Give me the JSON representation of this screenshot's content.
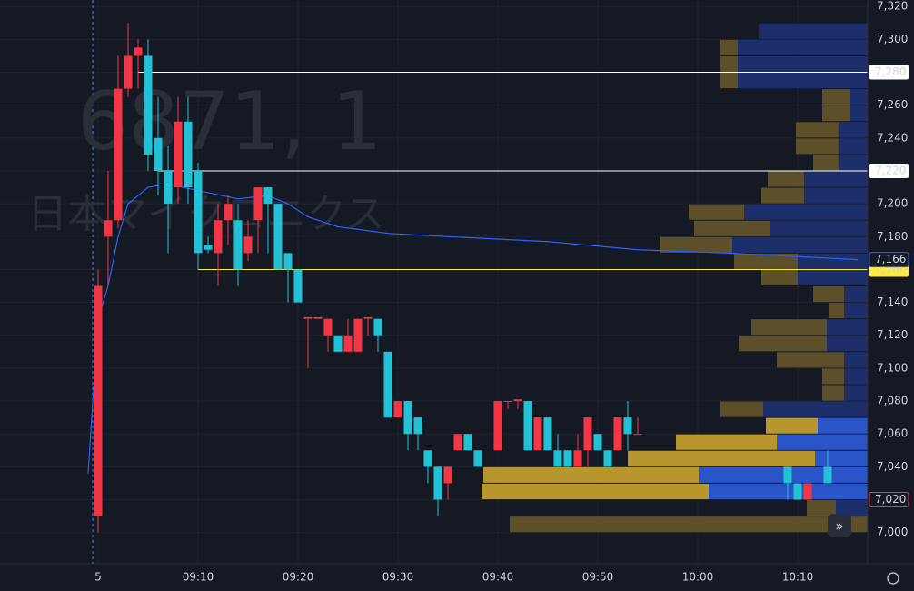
{
  "chart_data": {
    "type": "candlestick",
    "watermark": "6871, 1",
    "watermark_subtitle": "日本マイクロニクス",
    "ylim": [
      6981,
      7324
    ],
    "yticks": [
      {
        "value": 7000,
        "label": "7,000"
      },
      {
        "value": 7020,
        "label": "7,020"
      },
      {
        "value": 7040,
        "label": "7,040"
      },
      {
        "value": 7060,
        "label": "7,060"
      },
      {
        "value": 7080,
        "label": "7,080"
      },
      {
        "value": 7100,
        "label": "7,100"
      },
      {
        "value": 7120,
        "label": "7,120"
      },
      {
        "value": 7140,
        "label": "7,140"
      },
      {
        "value": 7160,
        "label": "7,160"
      },
      {
        "value": 7180,
        "label": "7,180"
      },
      {
        "value": 7200,
        "label": "7,200"
      },
      {
        "value": 7220,
        "label": "7,220"
      },
      {
        "value": 7240,
        "label": "7,240"
      },
      {
        "value": 7260,
        "label": "7,260"
      },
      {
        "value": 7280,
        "label": "7,280"
      },
      {
        "value": 7300,
        "label": "7,300"
      },
      {
        "value": 7320,
        "label": "7,320"
      }
    ],
    "xticks": [
      {
        "value": "09:00",
        "label": "5"
      },
      {
        "value": "09:10",
        "label": "09:10"
      },
      {
        "value": "09:20",
        "label": "09:20"
      },
      {
        "value": "09:30",
        "label": "09:30"
      },
      {
        "value": "09:40",
        "label": "09:40"
      },
      {
        "value": "09:50",
        "label": "09:50"
      },
      {
        "value": "10:00",
        "label": "10:00"
      },
      {
        "value": "10:10",
        "label": "10:10"
      }
    ],
    "grid": true,
    "up_color": "#f23645",
    "down_color": "#22c1d6",
    "x": [
      "09:00",
      "09:01",
      "09:02",
      "09:03",
      "09:04",
      "09:05",
      "09:06",
      "09:07",
      "09:08",
      "09:09",
      "09:10",
      "09:11",
      "09:12",
      "09:13",
      "09:14",
      "09:15",
      "09:16",
      "09:17",
      "09:18",
      "09:19",
      "09:20",
      "09:21",
      "09:22",
      "09:23",
      "09:24",
      "09:25",
      "09:26",
      "09:27",
      "09:28",
      "09:29",
      "09:30",
      "09:31",
      "09:32",
      "09:33",
      "09:34",
      "09:35",
      "09:36",
      "09:37",
      "09:38",
      "09:40",
      "09:41",
      "09:42",
      "09:43",
      "09:44",
      "09:45",
      "09:46",
      "09:47",
      "09:48",
      "09:49",
      "09:50",
      "09:51",
      "09:52",
      "09:53",
      "09:54",
      "10:09",
      "10:10",
      "10:11",
      "10:13"
    ],
    "open": [
      7010,
      7180,
      7190,
      7270,
      7290,
      7290,
      7240,
      7220,
      7210,
      7250,
      7220,
      7175,
      7170,
      7190,
      7190,
      7170,
      7190,
      7210,
      7200,
      7170,
      7160,
      7130,
      7130,
      7120,
      7120,
      7110,
      7110,
      7130,
      7130,
      7110,
      7070,
      7080,
      7070,
      7050,
      7040,
      7030,
      7050,
      7060,
      7050,
      7050,
      7080,
      7080,
      7080,
      7050,
      7070,
      7050,
      7050,
      7040,
      7050,
      7060,
      7050,
      7050,
      7070,
      7060,
      7040,
      7030,
      7020,
      7040
    ],
    "high": [
      7160,
      7220,
      7290,
      7310,
      7300,
      7300,
      7265,
      7235,
      7265,
      7265,
      7225,
      7180,
      7200,
      7205,
      7200,
      7190,
      7210,
      7210,
      7200,
      7170,
      7160,
      7130,
      7130,
      7130,
      7120,
      7130,
      7130,
      7130,
      7130,
      7110,
      7080,
      7080,
      7070,
      7050,
      7040,
      7040,
      7060,
      7060,
      7050,
      7080,
      7080,
      7080,
      7080,
      7070,
      7070,
      7060,
      7050,
      7060,
      7070,
      7060,
      7050,
      7070,
      7080,
      7070,
      7040,
      7030,
      7030,
      7050
    ],
    "low": [
      7000,
      7150,
      7185,
      7265,
      7270,
      7220,
      7205,
      7170,
      7200,
      7200,
      7160,
      7170,
      7150,
      7175,
      7150,
      7165,
      7170,
      7170,
      7160,
      7140,
      7140,
      7100,
      7130,
      7110,
      7110,
      7110,
      7110,
      7120,
      7110,
      7070,
      7070,
      7050,
      7050,
      7030,
      7010,
      7020,
      7050,
      7050,
      7040,
      7050,
      7075,
      7075,
      7050,
      7050,
      7050,
      7040,
      7040,
      7040,
      7040,
      7050,
      7040,
      7050,
      7050,
      7060,
      7020,
      7020,
      7020,
      7030
    ],
    "close": [
      7150,
      7190,
      7270,
      7290,
      7295,
      7230,
      7220,
      7200,
      7250,
      7210,
      7170,
      7172,
      7190,
      7200,
      7160,
      7180,
      7210,
      7200,
      7160,
      7160,
      7140,
      7131,
      7131,
      7130,
      7110,
      7120,
      7130,
      7131,
      7120,
      7070,
      7080,
      7060,
      7060,
      7040,
      7020,
      7040,
      7060,
      7050,
      7040,
      7080,
      7080,
      7081,
      7050,
      7070,
      7050,
      7040,
      7040,
      7050,
      7070,
      7050,
      7040,
      7070,
      7060,
      7060,
      7030,
      7020,
      7030,
      7030
    ],
    "vwap": {
      "color": "#2962ff",
      "x": [
        "08:59",
        "09:00",
        "09:01",
        "09:02",
        "09:03",
        "09:05",
        "09:07",
        "09:10",
        "09:14",
        "09:17",
        "09:19",
        "09:21",
        "09:24",
        "09:29",
        "09:35",
        "09:45",
        "09:54",
        "10:03",
        "10:16"
      ],
      "values": [
        7036,
        7130,
        7150,
        7180,
        7200,
        7210,
        7212,
        7208,
        7203,
        7205,
        7200,
        7192,
        7186,
        7182,
        7180,
        7177,
        7172,
        7170,
        7166
      ]
    },
    "levels": [
      {
        "value": 7280,
        "label": "7,280",
        "color": "#ffffff",
        "from": "09:04"
      },
      {
        "value": 7220,
        "label": "7,220",
        "color": "#ffffff",
        "from": "09:06"
      },
      {
        "value": 7160,
        "label": "7,160",
        "color": "#ffeb3b",
        "from": "09:10"
      }
    ],
    "price_labels": [
      {
        "value": 7166,
        "label": "7,166",
        "color": "#2962ff"
      },
      {
        "value": 7020,
        "label": "7,020",
        "color": "#f23645"
      }
    ],
    "volume_profile": {
      "prices": [
        7300,
        7290,
        7280,
        7270,
        7260,
        7250,
        7240,
        7230,
        7220,
        7210,
        7200,
        7190,
        7180,
        7170,
        7160,
        7150,
        7140,
        7130,
        7120,
        7110,
        7100,
        7090,
        7080,
        7070,
        7060,
        7050,
        7040,
        7030,
        7020,
        7010,
        7000
      ],
      "up": [
        0,
        19,
        19,
        19,
        31,
        31,
        48,
        48,
        29,
        40,
        47,
        61,
        84,
        80,
        70,
        40,
        34,
        17,
        83,
        97,
        74,
        24,
        24,
        47,
        57,
        111,
        206,
        237,
        250,
        32,
        394
      ],
      "down": [
        120,
        143,
        143,
        143,
        19,
        19,
        31,
        31,
        31,
        70,
        70,
        136,
        107,
        149,
        77,
        77,
        26,
        26,
        45,
        45,
        26,
        26,
        26,
        115,
        55,
        100,
        58,
        186,
        175,
        35,
        0
      ],
      "xlim": [
        0,
        430
      ],
      "value_area": [
        7020,
        7060
      ],
      "up_color": "#5c4f2a",
      "down_color": "#1c2f6b",
      "va_up_color": "#b8962e",
      "va_down_color": "#2a55c8"
    }
  }
}
